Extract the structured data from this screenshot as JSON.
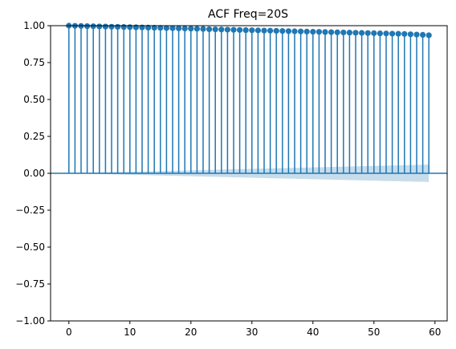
{
  "chart_data": {
    "type": "stem",
    "title": "ACF Freq=20S",
    "xlabel": "",
    "ylabel": "",
    "xlim": [
      -3,
      62
    ],
    "ylim": [
      -1.0,
      1.0
    ],
    "x_ticks": [
      0,
      10,
      20,
      30,
      40,
      50,
      60
    ],
    "y_ticks": [
      -1.0,
      -0.75,
      -0.5,
      -0.25,
      0.0,
      0.25,
      0.5,
      0.75,
      1.0
    ],
    "x_tick_labels": [
      "0",
      "10",
      "20",
      "30",
      "40",
      "50",
      "60"
    ],
    "y_tick_labels": [
      "−1.00",
      "−0.75",
      "−0.50",
      "−0.25",
      "0.00",
      "0.25",
      "0.50",
      "0.75",
      "1.00"
    ],
    "grid": false,
    "lags": [
      0,
      1,
      2,
      3,
      4,
      5,
      6,
      7,
      8,
      9,
      10,
      11,
      12,
      13,
      14,
      15,
      16,
      17,
      18,
      19,
      20,
      21,
      22,
      23,
      24,
      25,
      26,
      27,
      28,
      29,
      30,
      31,
      32,
      33,
      34,
      35,
      36,
      37,
      38,
      39,
      40,
      41,
      42,
      43,
      44,
      45,
      46,
      47,
      48,
      49,
      50,
      51,
      52,
      53,
      54,
      55,
      56,
      57,
      58,
      59
    ],
    "acf": [
      1.0,
      0.999,
      0.998,
      0.997,
      0.996,
      0.995,
      0.994,
      0.993,
      0.992,
      0.991,
      0.99,
      0.989,
      0.988,
      0.987,
      0.986,
      0.985,
      0.984,
      0.983,
      0.982,
      0.981,
      0.98,
      0.979,
      0.978,
      0.976,
      0.975,
      0.974,
      0.973,
      0.972,
      0.971,
      0.97,
      0.969,
      0.968,
      0.967,
      0.966,
      0.965,
      0.964,
      0.963,
      0.962,
      0.961,
      0.96,
      0.959,
      0.958,
      0.957,
      0.956,
      0.955,
      0.954,
      0.953,
      0.952,
      0.951,
      0.95,
      0.949,
      0.948,
      0.947,
      0.946,
      0.945,
      0.944,
      0.942,
      0.94,
      0.938,
      0.935
    ],
    "confidence_band": [
      0,
      0.001,
      0.002,
      0.003,
      0.004,
      0.005,
      0.006,
      0.007,
      0.008,
      0.009,
      0.01,
      0.011,
      0.012,
      0.013,
      0.014,
      0.015,
      0.016,
      0.017,
      0.018,
      0.019,
      0.02,
      0.021,
      0.022,
      0.023,
      0.024,
      0.025,
      0.026,
      0.027,
      0.028,
      0.029,
      0.03,
      0.031,
      0.032,
      0.033,
      0.034,
      0.035,
      0.036,
      0.037,
      0.038,
      0.039,
      0.04,
      0.041,
      0.042,
      0.043,
      0.044,
      0.045,
      0.046,
      0.047,
      0.048,
      0.049,
      0.05,
      0.051,
      0.052,
      0.053,
      0.054,
      0.055,
      0.056,
      0.057,
      0.058,
      0.059
    ],
    "colors": {
      "stem": "#1f77b4",
      "band": "#1f77b4"
    }
  }
}
